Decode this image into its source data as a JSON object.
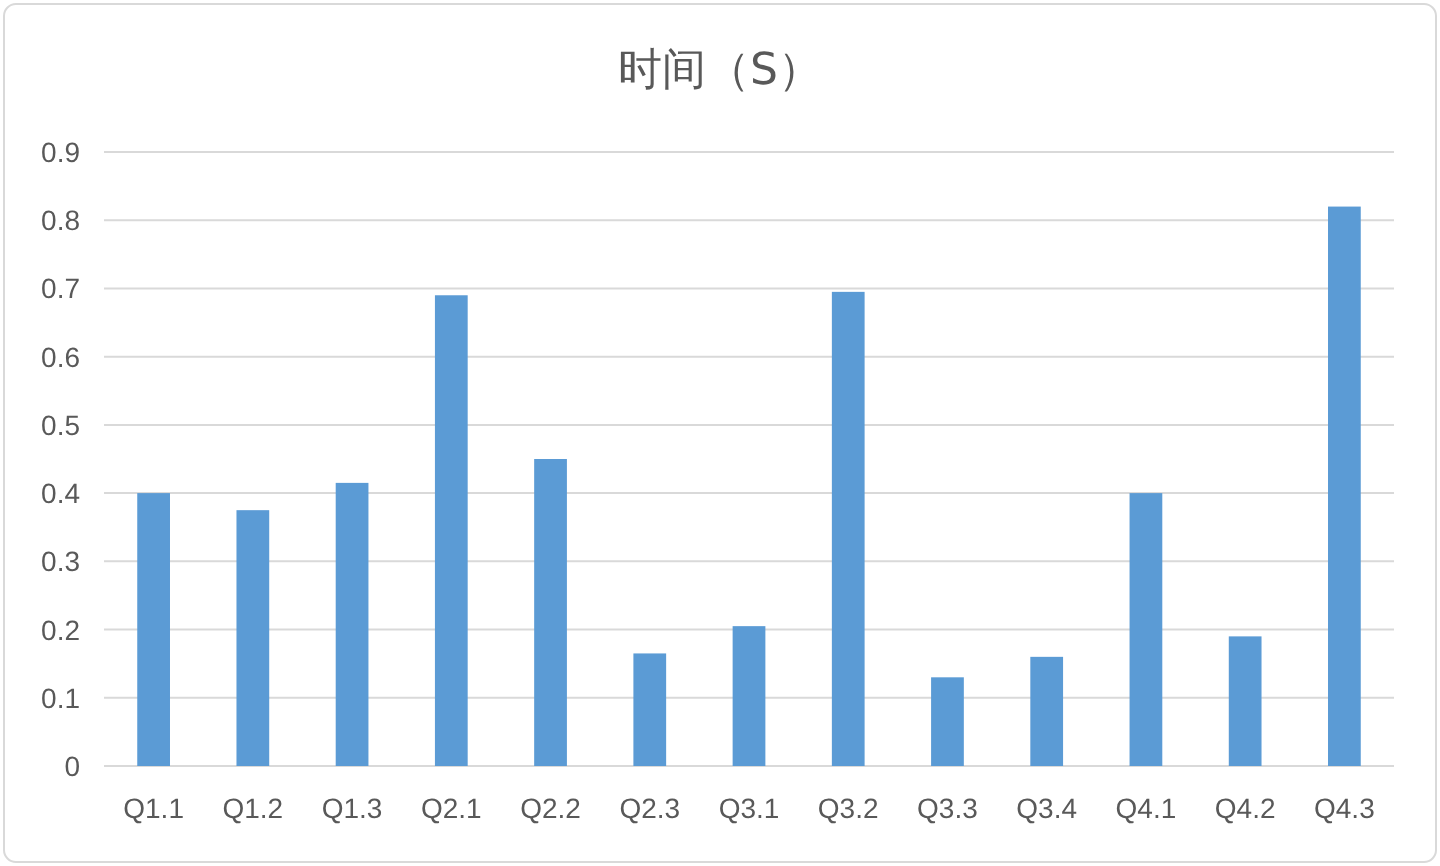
{
  "chart_data": {
    "type": "bar",
    "title": "时间（S）",
    "categories": [
      "Q1.1",
      "Q1.2",
      "Q1.3",
      "Q2.1",
      "Q2.2",
      "Q2.3",
      "Q3.1",
      "Q3.2",
      "Q3.3",
      "Q3.4",
      "Q4.1",
      "Q4.2",
      "Q4.3"
    ],
    "values": [
      0.4,
      0.375,
      0.415,
      0.69,
      0.45,
      0.165,
      0.205,
      0.695,
      0.13,
      0.16,
      0.4,
      0.19,
      0.82
    ],
    "color": "#5b9bd5",
    "ylim": [
      0,
      0.9
    ],
    "yticks": [
      0,
      0.1,
      0.2,
      0.3,
      0.4,
      0.5,
      0.6,
      0.7,
      0.8,
      0.9
    ],
    "grid": "y",
    "legend": false
  }
}
